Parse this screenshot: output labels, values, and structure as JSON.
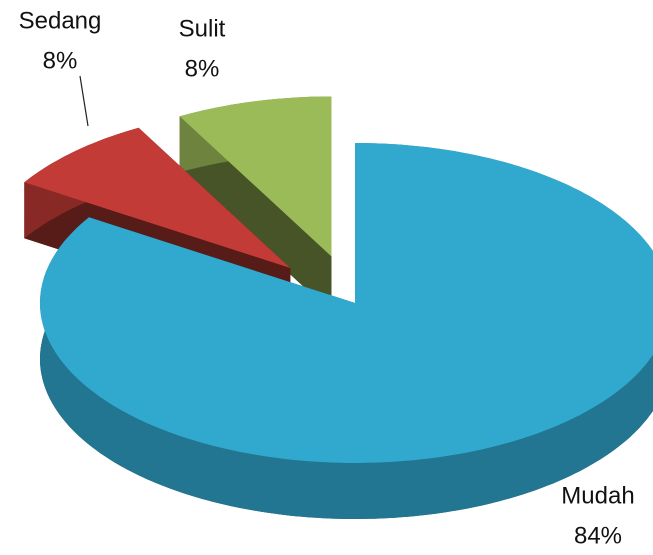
{
  "chart_data": {
    "type": "pie3d",
    "categories": [
      "Mudah",
      "Sedang",
      "Sulit"
    ],
    "values": [
      84,
      8,
      8
    ],
    "value_labels": [
      "84%",
      "8%",
      "8%"
    ],
    "colors": [
      "#31a9cf",
      "#c23b36",
      "#9bbb59"
    ],
    "exploded": [
      "Sedang",
      "Sulit"
    ]
  }
}
